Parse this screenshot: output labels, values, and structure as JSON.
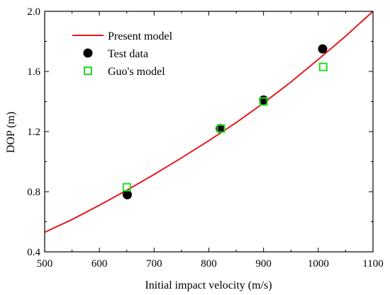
{
  "chart_data": {
    "type": "scatter",
    "xlabel": "Initial impact velocity (m/s)",
    "ylabel": "DOP (m)",
    "xlim": [
      500,
      1100
    ],
    "ylim": [
      0.4,
      2.0
    ],
    "xticks": [
      500,
      600,
      700,
      800,
      900,
      1000,
      1100
    ],
    "yticks": [
      0.4,
      0.8,
      1.2,
      1.6,
      2.0
    ],
    "xtick_labels": [
      "500",
      "600",
      "700",
      "800",
      "900",
      "1000",
      "1100"
    ],
    "ytick_labels": [
      "0.4",
      "0.8",
      "1.2",
      "1.6",
      "2.0"
    ],
    "grid": false,
    "legend_position": "top-left",
    "series": [
      {
        "name": "Present model",
        "kind": "line",
        "color": "#e41a1c",
        "x": [
          500,
          550,
          600,
          650,
          700,
          750,
          800,
          850,
          900,
          950,
          1000,
          1050,
          1100
        ],
        "y": [
          0.53,
          0.615,
          0.71,
          0.81,
          0.915,
          1.025,
          1.14,
          1.26,
          1.39,
          1.53,
          1.68,
          1.835,
          2.0
        ]
      },
      {
        "name": "Test data",
        "kind": "marker",
        "marker": "filled-circle",
        "color": "#000000",
        "x": [
          651,
          821,
          900,
          1008
        ],
        "y": [
          0.78,
          1.22,
          1.41,
          1.75
        ]
      },
      {
        "name": "Guo's model",
        "kind": "marker",
        "marker": "open-square",
        "color": "#22dd22",
        "x": [
          650,
          822,
          900,
          1009
        ],
        "y": [
          0.83,
          1.22,
          1.4,
          1.63
        ]
      }
    ]
  }
}
